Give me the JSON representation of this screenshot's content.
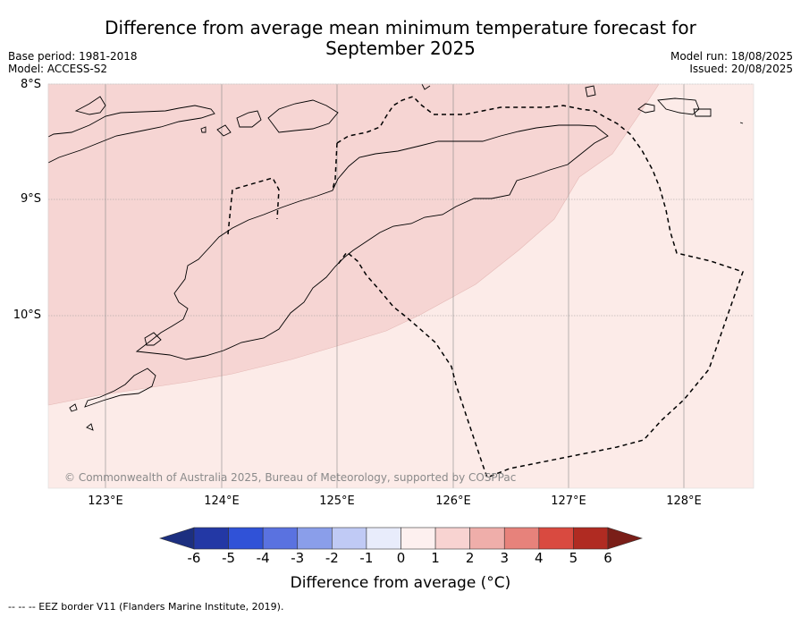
{
  "title_line1": "Difference from average mean minimum temperature forecast for",
  "title_line2": "September 2025",
  "meta_left": [
    "Base period: 1981-2018",
    "Model: ACCESS-S2"
  ],
  "meta_right": [
    "Model run: 18/08/2025",
    "Issued: 20/08/2025"
  ],
  "lat_labels": [
    "8°S",
    "9°S",
    "10°S"
  ],
  "lon_labels": [
    "123°E",
    "124°E",
    "125°E",
    "126°E",
    "127°E",
    "128°E"
  ],
  "copyright": "© Commonwealth of Australia 2025, Bureau of Meteorology, supported by COSPPac",
  "colorbar": {
    "ticks": [
      "-6",
      "-5",
      "-4",
      "-3",
      "-2",
      "-1",
      "0",
      "1",
      "2",
      "3",
      "4",
      "5",
      "6"
    ],
    "colors": [
      "#2338a5",
      "#3052d7",
      "#5a72e0",
      "#8a9eea",
      "#c0caf5",
      "#e8ecfb",
      "#fdf0ef",
      "#f8d3d1",
      "#efaeaa",
      "#e7827b",
      "#d94a40",
      "#b02b22"
    ],
    "under_color": "#1c2f80",
    "over_color": "#7a1e18",
    "label": "Difference from average (°C)"
  },
  "map_fill_colors": {
    "zone_0_1": "#fcebe8",
    "zone_1_2": "#f6d5d3"
  },
  "footer": "--  --  -- EEZ border V11 (Flanders Marine Institute, 2019)."
}
